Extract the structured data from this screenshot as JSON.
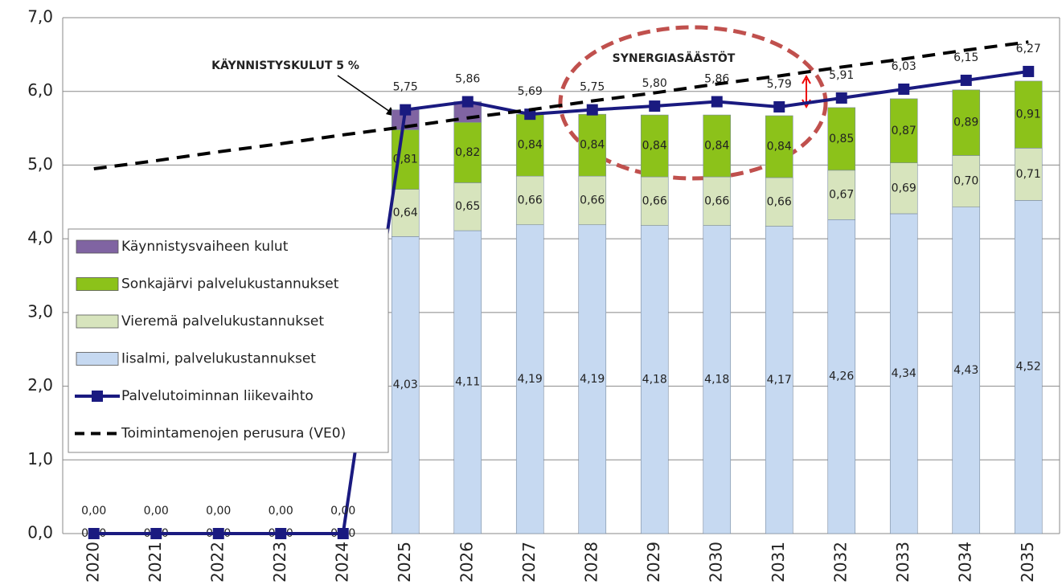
{
  "chart_data": {
    "type": "bar",
    "categories": [
      "2020",
      "2021",
      "2022",
      "2023",
      "2024",
      "2025",
      "2026",
      "2027",
      "2028",
      "2029",
      "2030",
      "2031",
      "2032",
      "2033",
      "2034",
      "2035"
    ],
    "ylim": [
      0,
      7
    ],
    "yticks": [
      {
        "value": 0,
        "label": "0,0"
      },
      {
        "value": 1,
        "label": "1,0"
      },
      {
        "value": 2,
        "label": "2,0"
      },
      {
        "value": 3,
        "label": "3,0"
      },
      {
        "value": 4,
        "label": "4,0"
      },
      {
        "value": 5,
        "label": "5,0"
      },
      {
        "value": 6,
        "label": "6,0"
      },
      {
        "value": 7,
        "label": "7,0"
      }
    ],
    "grid": true,
    "legend": "lower-left",
    "annotations": [
      "KÄYNNISTYSKULUT 5 %",
      "SYNERGIASÄÄSTÖT"
    ],
    "series": [
      {
        "name": "Iisalmi, palvelukustannukset",
        "kind": "bar",
        "color": "#c6d9f1",
        "values": [
          0,
          0,
          0,
          0,
          0,
          4.03,
          4.11,
          4.19,
          4.19,
          4.18,
          4.18,
          4.17,
          4.26,
          4.34,
          4.43,
          4.52
        ],
        "value_labels": [
          "0,00",
          "0,00",
          "0,00",
          "0,00",
          "0,00",
          "4,03",
          "4,11",
          "4,19",
          "4,19",
          "4,18",
          "4,18",
          "4,17",
          "4,26",
          "4,34",
          "4,43",
          "4,52"
        ]
      },
      {
        "name": "Vieremä palvelukustannukset",
        "kind": "bar",
        "color": "#d7e4bd",
        "values": [
          null,
          null,
          null,
          null,
          null,
          0.64,
          0.65,
          0.66,
          0.66,
          0.66,
          0.66,
          0.66,
          0.67,
          0.69,
          0.7,
          0.71
        ],
        "value_labels": [
          null,
          null,
          null,
          null,
          null,
          "0,64",
          "0,65",
          "0,66",
          "0,66",
          "0,66",
          "0,66",
          "0,66",
          "0,67",
          "0,69",
          "0,70",
          "0,71"
        ]
      },
      {
        "name": "Sonkajärvi palvelukustannukset",
        "kind": "bar",
        "color": "#8cc21a",
        "values": [
          null,
          null,
          null,
          null,
          null,
          0.81,
          0.82,
          0.84,
          0.84,
          0.84,
          0.84,
          0.84,
          0.85,
          0.87,
          0.89,
          0.91
        ],
        "value_labels": [
          null,
          null,
          null,
          null,
          null,
          "0,81",
          "0,82",
          "0,84",
          "0,84",
          "0,84",
          "0,84",
          "0,84",
          "0,85",
          "0,87",
          "0,89",
          "0,91"
        ]
      },
      {
        "name": "Käynnistysvaiheen kulut",
        "kind": "bar",
        "color": "#8064a2",
        "values": [
          null,
          null,
          null,
          null,
          null,
          0.27,
          0.28,
          null,
          null,
          null,
          null,
          null,
          null,
          null,
          null,
          null
        ]
      },
      {
        "name": "Palvelutoiminnan liikevaihto",
        "kind": "line",
        "color": "#1a1a80",
        "values": [
          0,
          0,
          0,
          0,
          0,
          5.75,
          5.86,
          5.69,
          5.75,
          5.8,
          5.86,
          5.79,
          5.91,
          6.03,
          6.15,
          6.27
        ],
        "value_labels": [
          "0,00",
          "0,00",
          "0,00",
          "0,00",
          "0,00",
          "5,75",
          "5,86",
          "5,69",
          "5,75",
          "5,80",
          "5,86",
          "5,79",
          "5,91",
          "6,03",
          "6,15",
          "6,27"
        ]
      },
      {
        "name": "Toimintamenojen perusura (VE0)",
        "kind": "dashed",
        "color": "#000000",
        "values": [
          4.95,
          5.06,
          5.18,
          5.29,
          5.41,
          5.52,
          5.64,
          5.75,
          5.87,
          5.98,
          6.1,
          6.21,
          6.33,
          6.44,
          6.56,
          6.67
        ]
      }
    ]
  }
}
